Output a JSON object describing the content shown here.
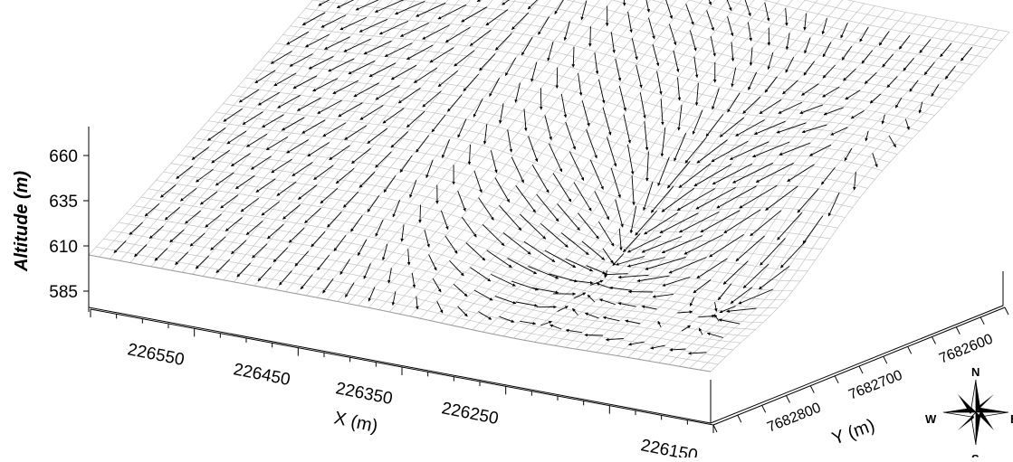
{
  "chart_data": {
    "type": "3d-surface-vector",
    "title": "",
    "z_axis": {
      "label": "Altitude (m)",
      "ticks": [
        585,
        610,
        635,
        660
      ]
    },
    "x_axis": {
      "label": "X (m)",
      "ticks": [
        "226550",
        "226450",
        "226350",
        "226250",
        "226150"
      ]
    },
    "y_axis": {
      "label": "Y (m)",
      "ticks": [
        "7682800",
        "7682700",
        "7682600"
      ]
    },
    "surface": {
      "mesh_color": "#b8b8b8",
      "vector_color": "#000000"
    },
    "compass": {
      "labels": [
        "N",
        "W",
        "E",
        "S"
      ]
    }
  }
}
